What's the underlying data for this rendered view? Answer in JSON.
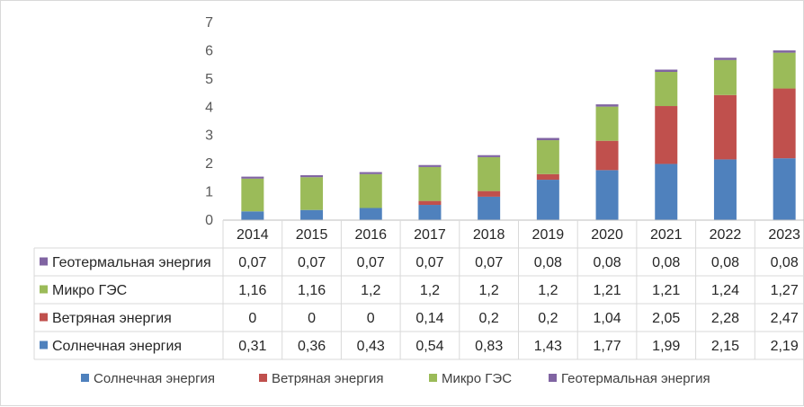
{
  "chart_data": {
    "type": "bar",
    "stacked": true,
    "categories": [
      "2014",
      "2015",
      "2016",
      "2017",
      "2018",
      "2019",
      "2020",
      "2021",
      "2022",
      "2023"
    ],
    "series": [
      {
        "name": "Солнечная энергия",
        "color": "#4f81bd",
        "values": [
          0.31,
          0.36,
          0.43,
          0.54,
          0.83,
          1.43,
          1.77,
          1.99,
          2.15,
          2.19
        ],
        "labels": [
          "0,31",
          "0,36",
          "0,43",
          "0,54",
          "0,83",
          "1,43",
          "1,77",
          "1,99",
          "2,15",
          "2,19"
        ]
      },
      {
        "name": "Ветряная энергия",
        "color": "#c0504d",
        "values": [
          0,
          0,
          0,
          0.14,
          0.2,
          0.2,
          1.04,
          2.05,
          2.28,
          2.47
        ],
        "labels": [
          "0",
          "0",
          "0",
          "0,14",
          "0,2",
          "0,2",
          "1,04",
          "2,05",
          "2,28",
          "2,47"
        ]
      },
      {
        "name": "Микро ГЭС",
        "color": "#9bbb59",
        "values": [
          1.16,
          1.16,
          1.2,
          1.2,
          1.2,
          1.2,
          1.21,
          1.21,
          1.24,
          1.27
        ],
        "labels": [
          "1,16",
          "1,16",
          "1,2",
          "1,2",
          "1,2",
          "1,2",
          "1,21",
          "1,21",
          "1,24",
          "1,27"
        ]
      },
      {
        "name": "Геотермальная энергия",
        "color": "#8064a2",
        "values": [
          0.07,
          0.07,
          0.07,
          0.07,
          0.07,
          0.08,
          0.08,
          0.08,
          0.08,
          0.08
        ],
        "labels": [
          "0,07",
          "0,07",
          "0,07",
          "0,07",
          "0,07",
          "0,08",
          "0,08",
          "0,08",
          "0,08",
          "0,08"
        ]
      }
    ],
    "ylim": [
      0,
      7
    ],
    "yticks": [
      "0",
      "1",
      "2",
      "3",
      "4",
      "5",
      "6",
      "7"
    ],
    "grid": false,
    "legend": "bottom",
    "data_table": true
  }
}
